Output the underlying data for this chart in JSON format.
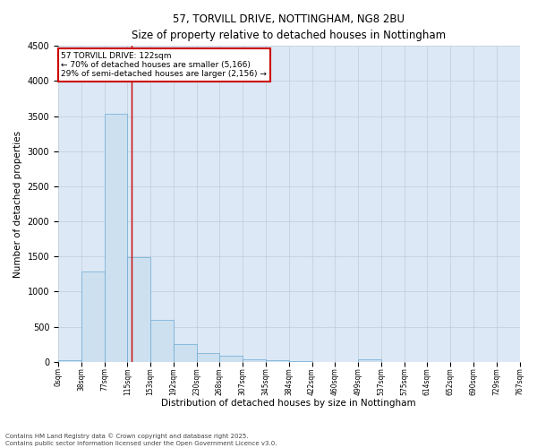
{
  "title_line1": "57, TORVILL DRIVE, NOTTINGHAM, NG8 2BU",
  "title_line2": "Size of property relative to detached houses in Nottingham",
  "xlabel": "Distribution of detached houses by size in Nottingham",
  "ylabel": "Number of detached properties",
  "bar_color": "#cde0f0",
  "bar_edge_color": "#6aaad4",
  "grid_color": "#c0ccd8",
  "vline_color": "#cc0000",
  "vline_x": 3.18,
  "annotation_text": "57 TORVILL DRIVE: 122sqm\n← 70% of detached houses are smaller (5,166)\n29% of semi-detached houses are larger (2,156) →",
  "annotation_box_edgecolor": "#cc0000",
  "annotation_bg": "#ffffff",
  "bar_values": [
    28,
    1280,
    3540,
    1490,
    600,
    250,
    120,
    80,
    40,
    20,
    15,
    0,
    0,
    35,
    0,
    0,
    0,
    0,
    0,
    0
  ],
  "x_labels": [
    "0sqm",
    "38sqm",
    "77sqm",
    "115sqm",
    "153sqm",
    "192sqm",
    "230sqm",
    "268sqm",
    "307sqm",
    "345sqm",
    "384sqm",
    "422sqm",
    "460sqm",
    "499sqm",
    "537sqm",
    "575sqm",
    "614sqm",
    "652sqm",
    "690sqm",
    "729sqm",
    "767sqm"
  ],
  "ylim": [
    0,
    4500
  ],
  "yticks": [
    0,
    500,
    1000,
    1500,
    2000,
    2500,
    3000,
    3500,
    4000,
    4500
  ],
  "footer_line1": "Contains HM Land Registry data © Crown copyright and database right 2025.",
  "footer_line2": "Contains public sector information licensed under the Open Government Licence v3.0.",
  "bg_color": "#ffffff",
  "plot_bg_color": "#dce8f5"
}
